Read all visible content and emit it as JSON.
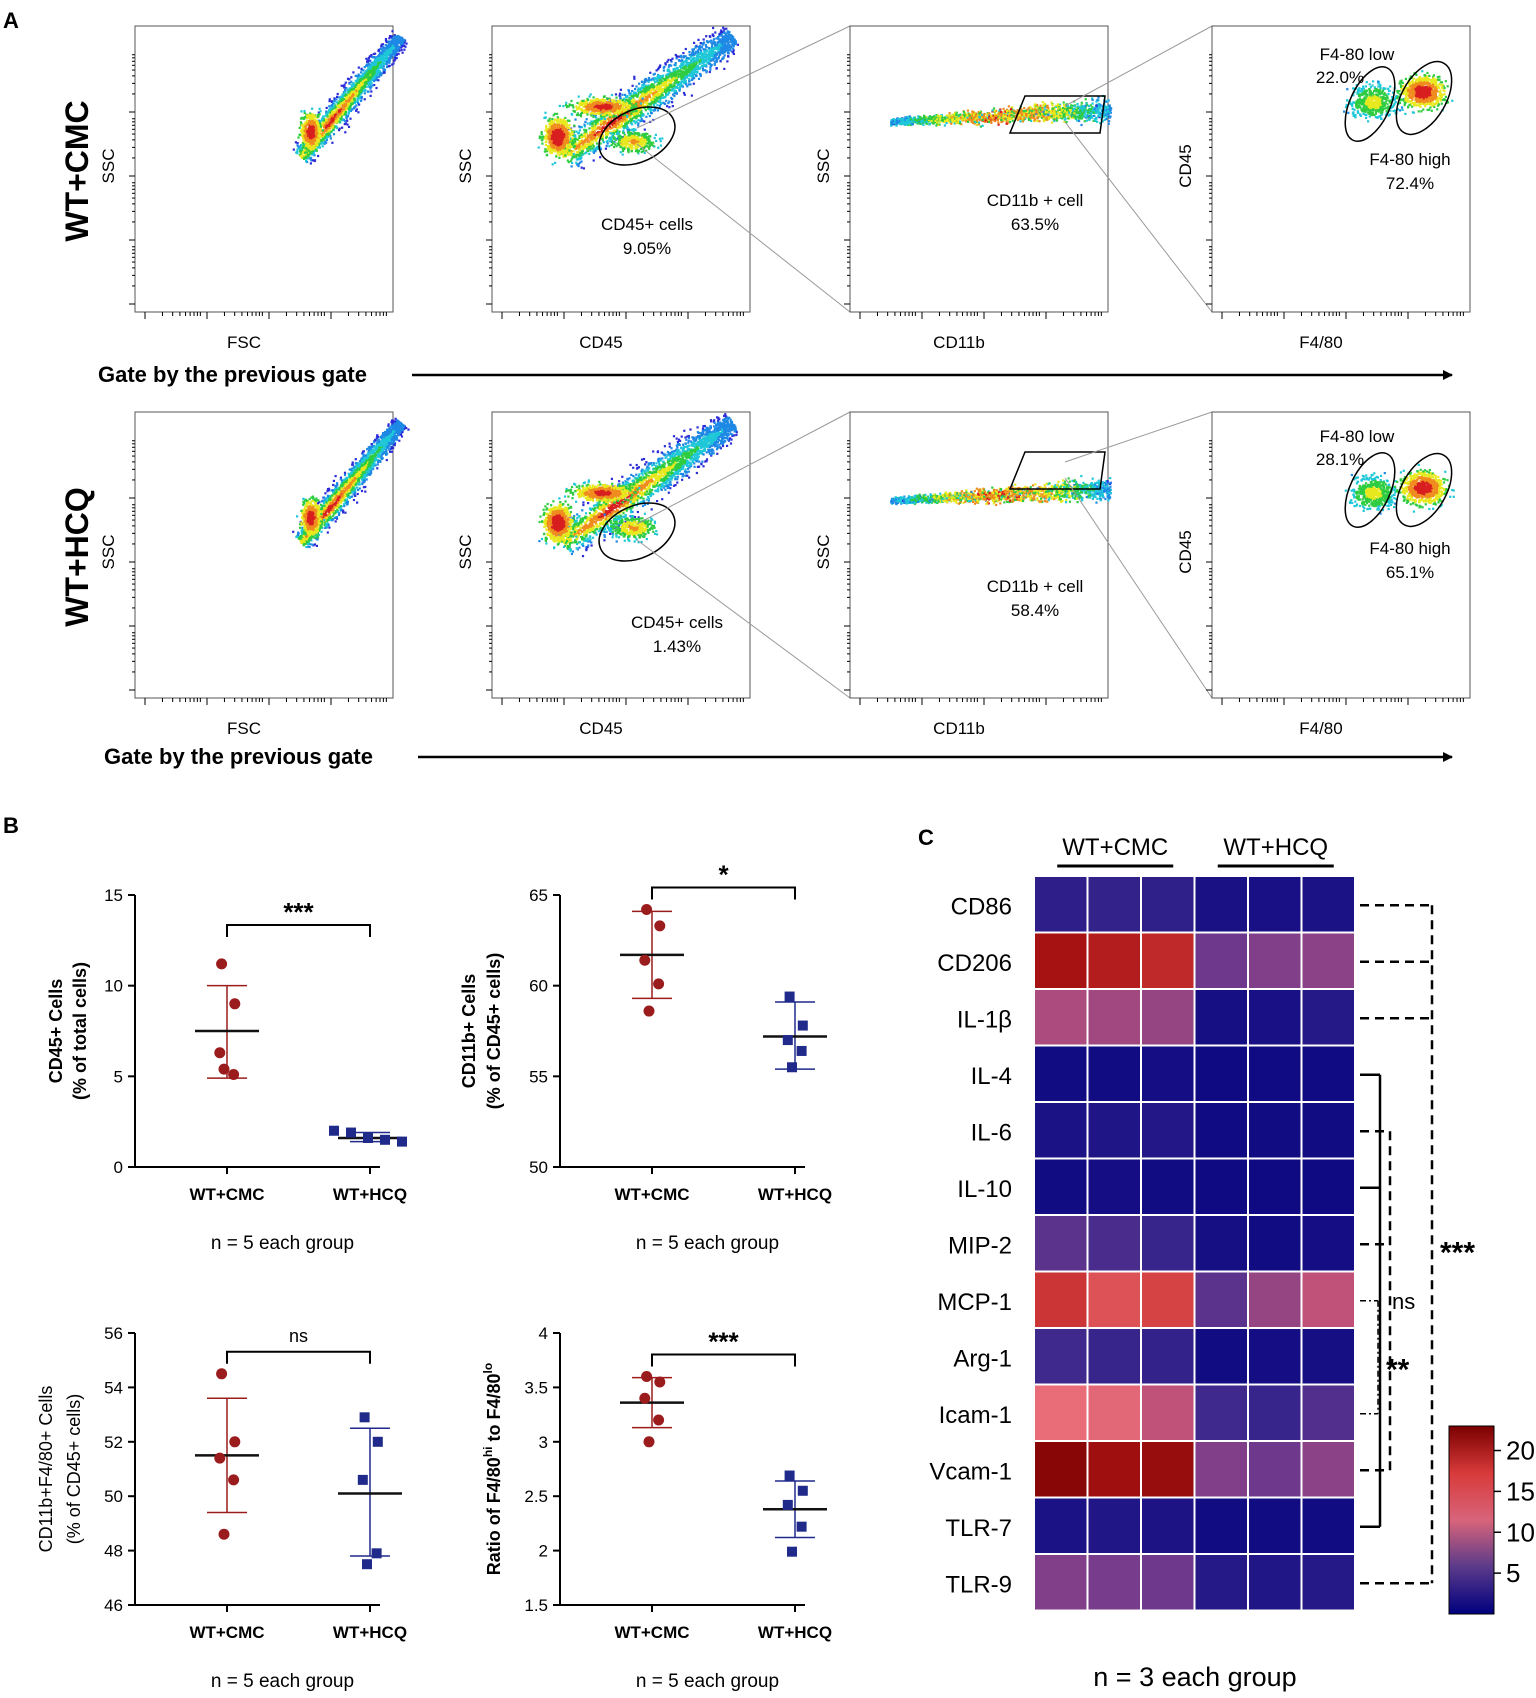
{
  "panels": {
    "A": {
      "label": "A",
      "rows": [
        {
          "group": "WT+CMC",
          "gate_caption": "Gate by the previous gate",
          "plots": [
            {
              "x_label": "FSC",
              "y_label": "SSC"
            },
            {
              "x_label": "CD45",
              "y_label": "SSC",
              "gate_name": "CD45+ cells",
              "gate_value": "9.05%"
            },
            {
              "x_label": "CD11b",
              "y_label": "SSC",
              "gate_name": "CD11b + cell",
              "gate_value": "63.5%"
            },
            {
              "x_label": "F4/80",
              "y_label": "CD45",
              "low_name": "F4-80 low",
              "low_value": "22.0%",
              "high_name": "F4-80 high",
              "high_value": "72.4%"
            }
          ]
        },
        {
          "group": "WT+HCQ",
          "gate_caption": "Gate by the previous gate",
          "plots": [
            {
              "x_label": "FSC",
              "y_label": "SSC"
            },
            {
              "x_label": "CD45",
              "y_label": "SSC",
              "gate_name": "CD45+ cells",
              "gate_value": "1.43%"
            },
            {
              "x_label": "CD11b",
              "y_label": "SSC",
              "gate_name": "CD11b + cell",
              "gate_value": "58.4%"
            },
            {
              "x_label": "F4/80",
              "y_label": "CD45",
              "low_name": "F4-80 low",
              "low_value": "28.1%",
              "high_name": "F4-80 high",
              "high_value": "65.1%"
            }
          ]
        }
      ]
    },
    "B": {
      "label": "B"
    },
    "C": {
      "label": "C"
    }
  },
  "chart_data": [
    {
      "type": "scatter",
      "panel": "B1",
      "ylabel_line1": "CD45+ Cells",
      "ylabel_line2": "(% of total cells)",
      "categories": [
        "WT+CMC",
        "WT+HCQ"
      ],
      "ylim": [
        0,
        15
      ],
      "yticks": [
        0,
        5,
        10,
        15
      ],
      "series": [
        {
          "name": "WT+CMC",
          "color": "#9b1c1c",
          "marker": "circle",
          "values": [
            11.2,
            9.0,
            6.3,
            5.1,
            5.4
          ],
          "mean": 7.5,
          "sd_low": 4.9,
          "sd_high": 10.0
        },
        {
          "name": "WT+HCQ",
          "color": "#1f2a8a",
          "marker": "square",
          "values": [
            2.0,
            1.9,
            1.6,
            1.5,
            1.4
          ],
          "mean": 1.6,
          "sd_low": 1.4,
          "sd_high": 1.9
        }
      ],
      "significance": "***",
      "note": "n = 5 each group"
    },
    {
      "type": "scatter",
      "panel": "B2",
      "ylabel_line1": "CD11b+ Cells",
      "ylabel_line2": "(% of CD45+ cells)",
      "categories": [
        "WT+CMC",
        "WT+HCQ"
      ],
      "ylim": [
        50,
        65
      ],
      "yticks": [
        50,
        55,
        60,
        65
      ],
      "series": [
        {
          "name": "WT+CMC",
          "color": "#9b1c1c",
          "marker": "circle",
          "values": [
            64.2,
            63.3,
            61.4,
            60.1,
            58.6
          ],
          "mean": 61.7,
          "sd_low": 59.3,
          "sd_high": 64.1
        },
        {
          "name": "WT+HCQ",
          "color": "#1f2a8a",
          "marker": "square",
          "values": [
            59.4,
            57.8,
            57.0,
            56.4,
            55.5
          ],
          "mean": 57.2,
          "sd_low": 55.4,
          "sd_high": 59.1
        }
      ],
      "significance": "*",
      "note": "n = 5 each group"
    },
    {
      "type": "scatter",
      "panel": "B3",
      "ylabel_line1": "CD11b+F4/80+ Cells",
      "ylabel_line2": "(% of CD45+ cells)",
      "categories": [
        "WT+CMC",
        "WT+HCQ"
      ],
      "ylim": [
        46,
        56
      ],
      "yticks": [
        46,
        48,
        50,
        52,
        54,
        56
      ],
      "series": [
        {
          "name": "WT+CMC",
          "color": "#9b1c1c",
          "marker": "circle",
          "values": [
            54.5,
            52.0,
            51.4,
            50.6,
            48.6
          ],
          "mean": 51.5,
          "sd_low": 49.4,
          "sd_high": 53.6
        },
        {
          "name": "WT+HCQ",
          "color": "#1f2a8a",
          "marker": "square",
          "values": [
            52.9,
            52.0,
            50.6,
            47.9,
            47.5
          ],
          "mean": 50.1,
          "sd_low": 47.8,
          "sd_high": 52.5
        }
      ],
      "significance": "ns",
      "note": "n = 5 each group"
    },
    {
      "type": "scatter",
      "panel": "B4",
      "ylabel_line1": "Ratio of F4/80",
      "ylabel_sup1": "hi",
      "ylabel_mid": " to F4/80",
      "ylabel_sup2": "lo",
      "categories": [
        "WT+CMC",
        "WT+HCQ"
      ],
      "ylim": [
        1.5,
        4.0
      ],
      "yticks": [
        1.5,
        2.0,
        2.5,
        3.0,
        3.5,
        4.0
      ],
      "series": [
        {
          "name": "WT+CMC",
          "color": "#9b1c1c",
          "marker": "circle",
          "values": [
            3.6,
            3.55,
            3.4,
            3.2,
            3.0
          ],
          "mean": 3.36,
          "sd_low": 3.13,
          "sd_high": 3.59
        },
        {
          "name": "WT+HCQ",
          "color": "#1f2a8a",
          "marker": "square",
          "values": [
            2.69,
            2.55,
            2.42,
            2.22,
            1.99
          ],
          "mean": 2.38,
          "sd_low": 2.12,
          "sd_high": 2.64
        }
      ],
      "significance": "***",
      "note": "n = 5 each group"
    },
    {
      "type": "heatmap",
      "panel": "C",
      "groups": [
        "WT+CMC",
        "WT+HCQ"
      ],
      "rows": [
        "CD86",
        "CD206",
        "IL-1β",
        "IL-4",
        "IL-6",
        "IL-10",
        "MIP-2",
        "MCP-1",
        "Arg-1",
        "Icam-1",
        "Vcam-1",
        "TLR-7",
        "TLR-9"
      ],
      "values": [
        [
          2.5,
          2.8,
          2.6,
          1.4,
          1.3,
          1.5
        ],
        [
          20.0,
          19.0,
          18.0,
          6.0,
          7.0,
          7.5
        ],
        [
          9.0,
          8.5,
          8.0,
          1.2,
          1.3,
          2.0
        ],
        [
          1.0,
          1.0,
          1.1,
          0.8,
          0.9,
          0.9
        ],
        [
          1.5,
          1.7,
          1.9,
          0.9,
          1.0,
          1.0
        ],
        [
          1.0,
          1.1,
          1.0,
          0.8,
          0.8,
          0.8
        ],
        [
          5.0,
          4.0,
          3.0,
          1.2,
          1.0,
          1.1
        ],
        [
          17.0,
          15.0,
          16.0,
          5.0,
          8.0,
          10.0
        ],
        [
          3.5,
          3.0,
          2.8,
          1.0,
          1.1,
          1.2
        ],
        [
          13.0,
          12.5,
          10.0,
          3.5,
          3.0,
          4.5
        ],
        [
          22.0,
          20.5,
          21.0,
          7.0,
          6.0,
          7.5
        ],
        [
          1.5,
          1.8,
          1.6,
          1.0,
          1.0,
          1.0
        ],
        [
          7.0,
          6.5,
          6.0,
          2.0,
          1.8,
          2.0
        ]
      ],
      "colorbar": {
        "min": 0,
        "max": 23,
        "ticks": [
          "20",
          "15",
          "10",
          "5"
        ],
        "tick_values": [
          20,
          15,
          10,
          5
        ],
        "low_color": "#00007f",
        "mid_color": "#f07a80",
        "high_color": "#7a0000"
      },
      "significance_labels": {
        "three": "***",
        "two": "**",
        "ns": "ns"
      },
      "note": "n = 3 each group"
    }
  ]
}
